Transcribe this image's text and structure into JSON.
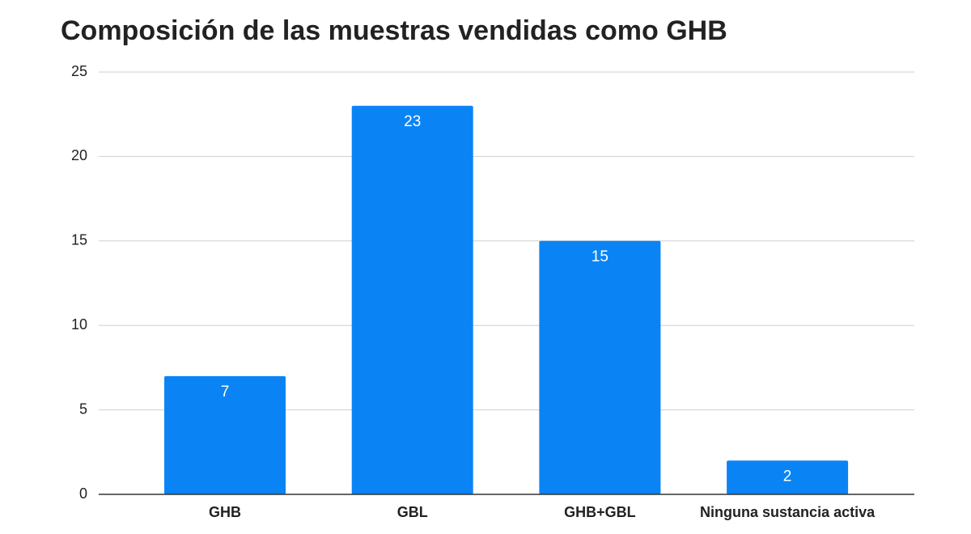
{
  "chart_data": {
    "type": "bar",
    "title": "Composición de las muestras vendidas como GHB",
    "categories": [
      "GHB",
      "GBL",
      "GHB+GBL",
      "Ninguna sustancia activa"
    ],
    "values": [
      7,
      23,
      15,
      2
    ],
    "color": "#0a84f5",
    "ylim": [
      0,
      25
    ],
    "yticks": [
      0,
      5,
      10,
      15,
      20,
      25
    ],
    "grid": true
  }
}
